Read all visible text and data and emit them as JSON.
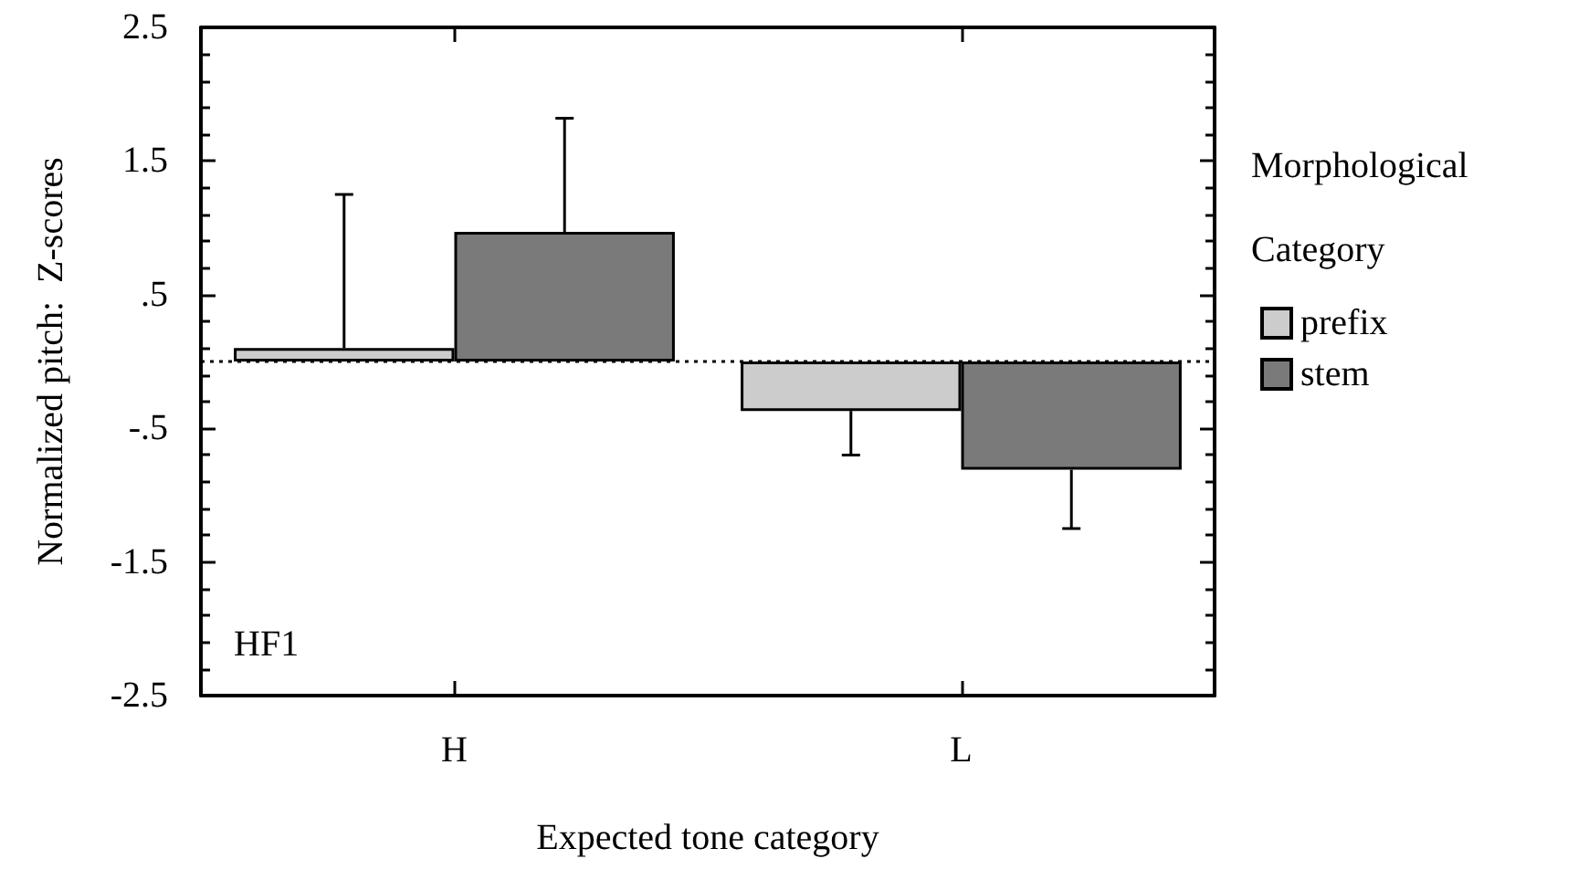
{
  "chart_data": {
    "type": "bar",
    "xlabel": "Expected tone category",
    "ylabel": "Normalized pitch:  Z-scores",
    "legend_title": "Morphological Category",
    "categories": [
      "H",
      "L"
    ],
    "series": [
      {
        "name": "prefix",
        "color": "#cccccc",
        "values": [
          0.1,
          -0.37
        ],
        "errors": [
          [
            0.1,
            1.25
          ],
          [
            -0.7,
            -0.37
          ]
        ]
      },
      {
        "name": "stem",
        "color": "#7a7a7a",
        "values": [
          0.97,
          -0.81
        ],
        "errors": [
          [
            0.97,
            1.82
          ],
          [
            -1.25,
            -0.81
          ]
        ]
      }
    ],
    "ylim": [
      -2.5,
      2.5
    ],
    "yticks": [
      {
        "value": 2.5,
        "label": "2.5"
      },
      {
        "value": 1.5,
        "label": "1.5"
      },
      {
        "value": 0.5,
        "label": ".5"
      },
      {
        "value": -0.5,
        "label": "-.5"
      },
      {
        "value": -1.5,
        "label": "-1.5"
      },
      {
        "value": -2.5,
        "label": "-2.5"
      }
    ],
    "ref_lines": [
      {
        "axis": "y",
        "value": 0,
        "label": null,
        "line_style": "dotted",
        "color": "#000000"
      }
    ],
    "annotations": [
      "HF1"
    ],
    "legend": "right",
    "grid": false
  }
}
